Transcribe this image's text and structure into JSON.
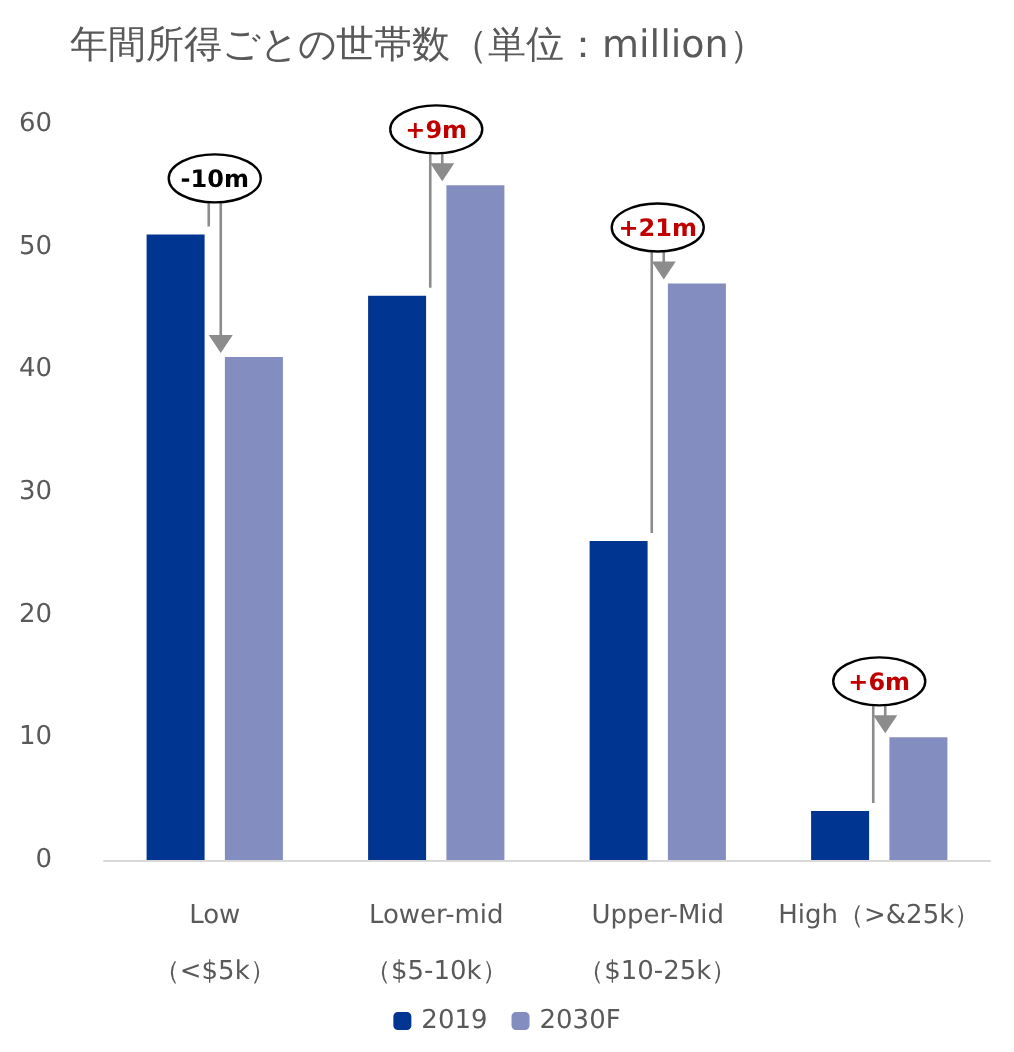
{
  "chart_data": {
    "type": "bar",
    "title": "年間所得ごとの世帯数（単位：million）",
    "categories": [
      "Low\n（<$5k）",
      "Lower-mid\n（$5-10k）",
      "Upper-Mid\n（$10-25k）",
      "High（>&25k）"
    ],
    "series": [
      {
        "name": "2019",
        "color": "#003591",
        "values": [
          51,
          46,
          26,
          4
        ]
      },
      {
        "name": "2030F",
        "color": "#848dbf",
        "values": [
          41,
          55,
          47,
          10
        ]
      }
    ],
    "ylim": [
      0,
      60
    ],
    "yticks": [
      0,
      10,
      20,
      30,
      40,
      50,
      60
    ],
    "grid": false,
    "legend": "bottom",
    "annotations": [
      "-10m",
      "+9m",
      "+21m",
      "+6m"
    ]
  }
}
